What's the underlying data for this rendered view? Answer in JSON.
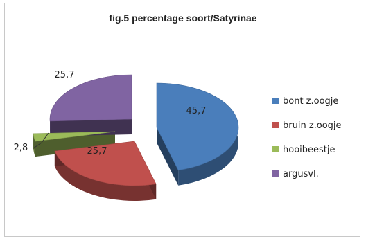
{
  "chart_data": {
    "type": "pie",
    "style": "3d-exploded",
    "title": "fig.5 percentage soort/Satyrinae",
    "categories": [
      "bont z.oogje",
      "bruin z.oogje",
      "hooibeestje",
      "argusvl."
    ],
    "values": [
      45.7,
      25.7,
      2.8,
      25.7
    ],
    "value_labels": [
      "45,7",
      "25,7",
      "2,8",
      "25,7"
    ],
    "colors": [
      "#4a7ebb",
      "#c0504d",
      "#9bbb59",
      "#8064a2"
    ],
    "legend_position": "right"
  }
}
